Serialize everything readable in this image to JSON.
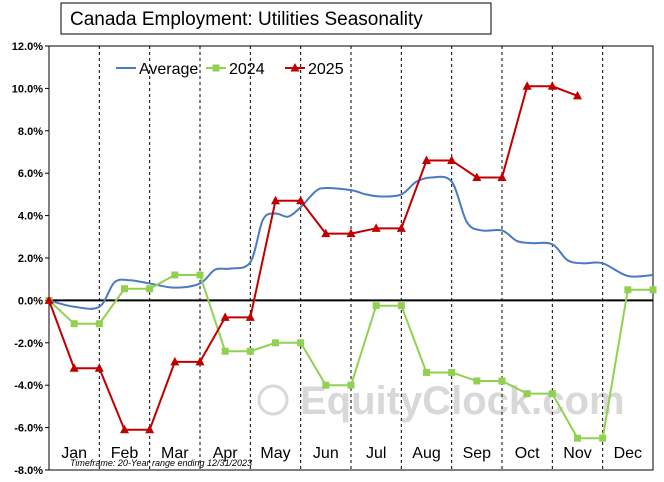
{
  "title": "Canada Employment: Utilities Seasonality",
  "footnote": "Timeframe: 20-Year range ending 12/31/2023",
  "watermark": "EquityClock.com",
  "watermark_symbol": "©",
  "chart_data": {
    "type": "line",
    "title": "Canada Employment: Utilities Seasonality",
    "xlabel": "",
    "ylabel": "",
    "ylim": [
      -8,
      12
    ],
    "y_ticks": [
      "12.0%",
      "10.0%",
      "8.0%",
      "6.0%",
      "4.0%",
      "2.0%",
      "0.0%",
      "-2.0%",
      "-4.0%",
      "-6.0%",
      "-8.0%"
    ],
    "y_tick_values": [
      12,
      10,
      8,
      6,
      4,
      2,
      0,
      -2,
      -4,
      -6,
      -8
    ],
    "categories": [
      "Jan",
      "Feb",
      "Mar",
      "Apr",
      "May",
      "Jun",
      "Jul",
      "Aug",
      "Sep",
      "Oct",
      "Nov",
      "Dec"
    ],
    "legend_position": "top-left",
    "grid": "vertical-dashed",
    "series": [
      {
        "name": "Average",
        "color": "#4a7ac0",
        "marker": "none",
        "x": [
          0,
          0.5,
          1,
          1.3,
          1.6,
          2,
          2.5,
          3,
          3.3,
          3.6,
          4,
          4.25,
          4.5,
          4.75,
          5,
          5.3,
          5.5,
          6,
          6.3,
          6.6,
          7,
          7.3,
          7.6,
          8,
          8.3,
          8.6,
          9,
          9.3,
          9.6,
          10,
          10.3,
          10.6,
          11,
          11.5,
          12
        ],
        "y": [
          0,
          -0.3,
          -0.3,
          0.85,
          0.95,
          0.8,
          0.6,
          0.8,
          1.45,
          1.5,
          1.8,
          3.8,
          4.1,
          3.95,
          4.4,
          5.15,
          5.3,
          5.2,
          5.0,
          4.9,
          5.0,
          5.6,
          5.8,
          5.6,
          3.7,
          3.3,
          3.3,
          2.8,
          2.7,
          2.65,
          1.9,
          1.75,
          1.75,
          1.15,
          1.2
        ]
      },
      {
        "name": "2024",
        "color": "#92d050",
        "marker": "square",
        "x": [
          0,
          0.5,
          1,
          1.5,
          2,
          2.5,
          3,
          3.5,
          4,
          4.5,
          5,
          5.5,
          6,
          6.5,
          7,
          7.5,
          8,
          8.5,
          9,
          9.5,
          10,
          10.5,
          11,
          11.5,
          12
        ],
        "y": [
          0,
          -1.1,
          -1.1,
          0.55,
          0.55,
          1.2,
          1.2,
          -2.4,
          -2.4,
          -2.0,
          -2.0,
          -4.0,
          -4.0,
          -0.25,
          -0.25,
          -3.4,
          -3.4,
          -3.8,
          -3.8,
          -4.4,
          -4.4,
          -6.5,
          -6.5,
          0.5,
          0.5
        ]
      },
      {
        "name": "2025",
        "color": "#c00000",
        "marker": "triangle",
        "x": [
          0,
          0.5,
          1,
          1.5,
          2,
          2.5,
          3,
          3.5,
          4,
          4.5,
          5,
          5.5,
          6,
          6.5,
          7,
          7.5,
          8,
          8.5,
          9,
          9.5,
          10,
          10.5
        ],
        "y": [
          0,
          -3.2,
          -3.2,
          -6.1,
          -6.1,
          -2.9,
          -2.9,
          -0.8,
          -0.8,
          4.7,
          4.7,
          3.15,
          3.15,
          3.4,
          3.4,
          6.6,
          6.6,
          5.8,
          5.8,
          10.1,
          10.1,
          9.65
        ]
      }
    ]
  }
}
